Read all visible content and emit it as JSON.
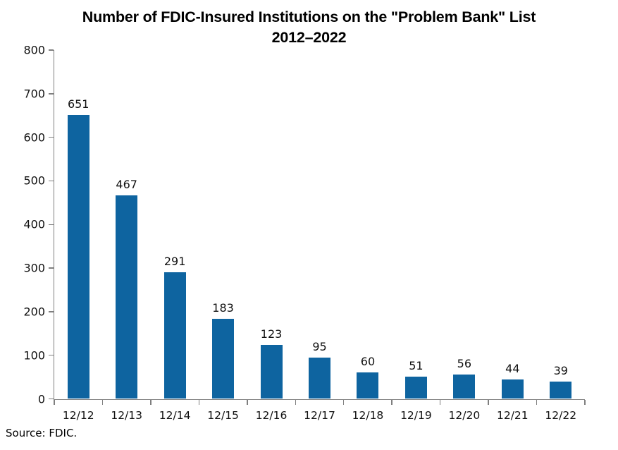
{
  "title": {
    "line1": "Number of FDIC-Insured Institutions on the \"Problem Bank\" List",
    "line2": "2012–2022"
  },
  "source": {
    "text": "Source: FDIC."
  },
  "colors": {
    "bar": "#0E64A0",
    "axis": "#7F7F7F",
    "text": "#111111",
    "background": "#FFFFFF"
  },
  "chart_data": {
    "type": "bar",
    "title": "Number of FDIC-Insured Institutions on the \"Problem Bank\" List 2012–2022",
    "categories": [
      "12/12",
      "12/13",
      "12/14",
      "12/15",
      "12/16",
      "12/17",
      "12/18",
      "12/19",
      "12/20",
      "12/21",
      "12/22"
    ],
    "values": [
      651,
      467,
      291,
      183,
      123,
      95,
      60,
      51,
      56,
      44,
      39
    ],
    "xlabel": "",
    "ylabel": "",
    "ylim": [
      0,
      800
    ],
    "ytick_step": 100,
    "ytick_labels": [
      "0",
      "100",
      "200",
      "300",
      "400",
      "500",
      "600",
      "700",
      "800"
    ],
    "grid": false,
    "legend": "none",
    "data_labels": true,
    "source": "Source: FDIC."
  }
}
